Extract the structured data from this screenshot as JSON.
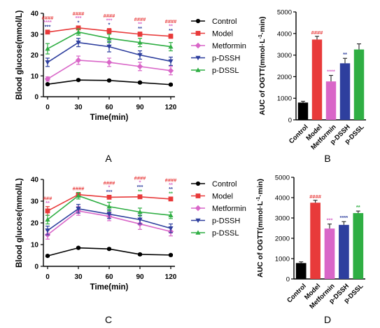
{
  "legend": [
    "Control",
    "Model",
    "Metformin",
    "p-DSSH",
    "p-DSSL"
  ],
  "colors": {
    "Control": "#000000",
    "Model": "#e83a3a",
    "Metformin": "#d966c8",
    "p-DSSH": "#2e3f9e",
    "p-DSSL": "#2fae43"
  },
  "chart_data": [
    {
      "panel": "A",
      "type": "line",
      "xlabel": "Time(min)",
      "ylabel": "Blood glucose(mmol/L)",
      "x": [
        0,
        30,
        60,
        90,
        120
      ],
      "ylim": [
        0,
        40
      ],
      "yticks": [
        0,
        10,
        20,
        30,
        40
      ],
      "series": [
        {
          "name": "Control",
          "values": [
            6.0,
            8.0,
            7.8,
            6.8,
            5.8
          ],
          "err": [
            0.4,
            0.4,
            0.4,
            0.4,
            0.4
          ]
        },
        {
          "name": "Model",
          "values": [
            31.0,
            33.0,
            31.5,
            30.0,
            29.0
          ],
          "err": [
            0.8,
            0.8,
            1.2,
            1.0,
            1.0
          ]
        },
        {
          "name": "Metformin",
          "values": [
            8.5,
            17.5,
            16.5,
            14.5,
            12.5
          ],
          "err": [
            1.0,
            2.0,
            2.0,
            2.0,
            2.0
          ]
        },
        {
          "name": "p-DSSH",
          "values": [
            16.5,
            26.0,
            24.0,
            20.0,
            17.0
          ],
          "err": [
            2.0,
            2.0,
            2.5,
            2.0,
            2.0
          ]
        },
        {
          "name": "p-DSSL",
          "values": [
            23.0,
            31.0,
            28.0,
            26.0,
            24.0
          ],
          "err": [
            2.5,
            1.5,
            2.0,
            2.0,
            2.0
          ]
        }
      ],
      "annotations": [
        {
          "x": 0,
          "lines": [
            [
              "####",
              "Model"
            ],
            [
              "****",
              "Metformin"
            ],
            [
              "***",
              "p-DSSH"
            ]
          ]
        },
        {
          "x": 30,
          "lines": [
            [
              "####",
              "Model"
            ],
            [
              "***",
              "Metformin"
            ],
            [
              "*",
              "p-DSSH"
            ]
          ]
        },
        {
          "x": 60,
          "lines": [
            [
              "####",
              "Model"
            ],
            [
              "***",
              "Metformin"
            ],
            [
              "*",
              "p-DSSH"
            ]
          ]
        },
        {
          "x": 90,
          "lines": [
            [
              "####",
              "Model"
            ],
            [
              "**",
              "Metformin"
            ],
            [
              "**",
              "p-DSSH"
            ]
          ]
        },
        {
          "x": 120,
          "lines": [
            [
              "####",
              "Model"
            ],
            [
              "**",
              "Metformin"
            ],
            [
              "**",
              "p-DSSH"
            ]
          ]
        }
      ]
    },
    {
      "panel": "B",
      "type": "bar",
      "ylabel": "AUC of OGTT",
      "categories": [
        "Control",
        "Model",
        "Metformin",
        "p-DSSH",
        "p-DSSL"
      ],
      "values": [
        800,
        3720,
        1780,
        2620,
        3260
      ],
      "err": [
        60,
        150,
        280,
        230,
        260
      ],
      "labels": [
        "",
        "####",
        "****",
        "**",
        ""
      ],
      "ylim": [
        0,
        5000
      ],
      "yticks": [
        0,
        1000,
        2000,
        3000,
        4000,
        5000
      ]
    },
    {
      "panel": "C",
      "type": "line",
      "xlabel": "Time(min)",
      "ylabel": "Blood glucose(mmol/L)",
      "x": [
        0,
        30,
        60,
        90,
        120
      ],
      "ylim": [
        0,
        40
      ],
      "yticks": [
        0,
        10,
        20,
        30,
        40
      ],
      "series": [
        {
          "name": "Control",
          "values": [
            4.8,
            8.5,
            8.0,
            5.5,
            5.2
          ],
          "err": [
            0.4,
            0.4,
            0.4,
            0.4,
            0.4
          ]
        },
        {
          "name": "Model",
          "values": [
            25.5,
            33.0,
            31.8,
            32.0,
            31.0
          ],
          "err": [
            2.0,
            0.8,
            0.8,
            0.8,
            0.8
          ]
        },
        {
          "name": "Metformin",
          "values": [
            14.5,
            25.5,
            23.0,
            19.5,
            16.0
          ],
          "err": [
            2.0,
            2.0,
            2.0,
            2.5,
            2.0
          ]
        },
        {
          "name": "p-DSSH",
          "values": [
            16.5,
            26.5,
            24.0,
            21.5,
            17.5
          ],
          "err": [
            2.0,
            2.0,
            2.0,
            2.0,
            2.0
          ]
        },
        {
          "name": "p-DSSL",
          "values": [
            21.5,
            32.5,
            27.5,
            25.0,
            23.5
          ],
          "err": [
            2.0,
            1.5,
            2.0,
            1.8,
            1.5
          ]
        }
      ],
      "annotations": [
        {
          "x": 0,
          "lines": [
            [
              "###",
              "Model"
            ],
            [
              "**",
              "Metformin"
            ]
          ]
        },
        {
          "x": 30,
          "lines": [
            [
              "####",
              "Model"
            ]
          ]
        },
        {
          "x": 60,
          "lines": [
            [
              "####",
              "Model"
            ],
            [
              "*",
              "Metformin"
            ],
            [
              "***",
              "p-DSSH"
            ]
          ]
        },
        {
          "x": 90,
          "lines": [
            [
              "####",
              "Model"
            ],
            [
              "*",
              "Metformin"
            ],
            [
              "***",
              "p-DSSH"
            ],
            [
              "**",
              "p-DSSL"
            ]
          ]
        },
        {
          "x": 120,
          "lines": [
            [
              "####",
              "Model"
            ],
            [
              "**",
              "Metformin"
            ],
            [
              "**",
              "p-DSSH"
            ],
            [
              "**",
              "p-DSSL"
            ]
          ]
        }
      ]
    },
    {
      "panel": "D",
      "type": "bar",
      "ylabel": "AUC of OGTT",
      "categories": [
        "Control",
        "Model",
        "Metformin",
        "p-DSSH",
        "p-DSSL"
      ],
      "values": [
        780,
        3750,
        2480,
        2660,
        3240
      ],
      "err": [
        60,
        120,
        220,
        160,
        100
      ],
      "labels": [
        "",
        "####",
        "***",
        "****",
        "**"
      ],
      "ylim": [
        0,
        5000
      ],
      "yticks": [
        0,
        1000,
        2000,
        3000,
        4000,
        5000
      ]
    }
  ]
}
